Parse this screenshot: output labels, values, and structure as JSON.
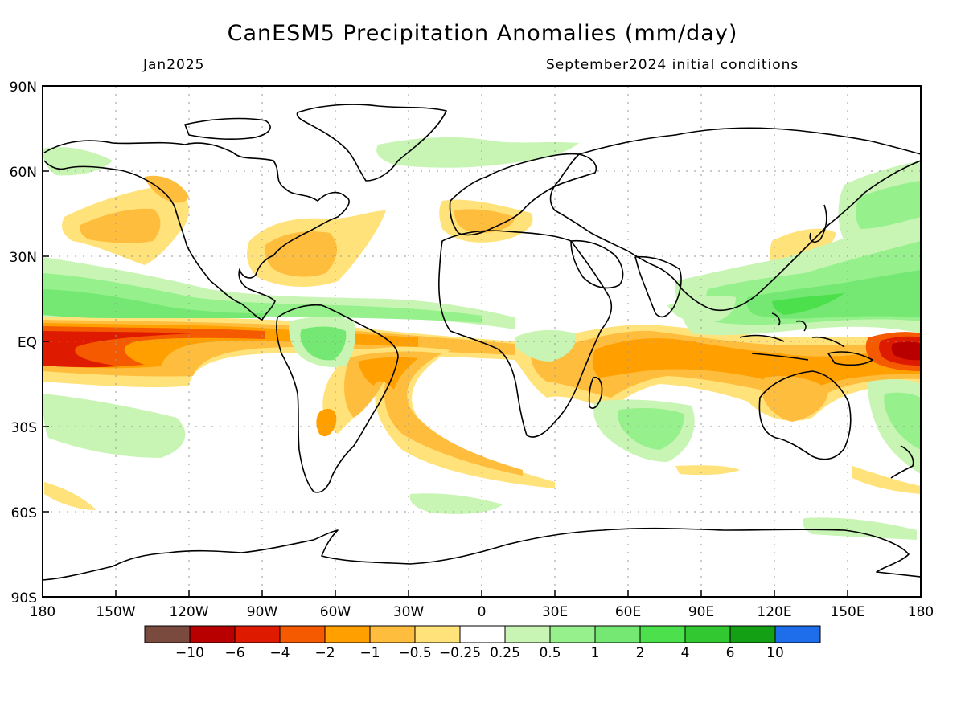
{
  "title": "CanESM5 Precipitation Anomalies (mm/day)",
  "valid_month": "Jan2025",
  "init_label": "September2024 initial conditions",
  "lat_labels": [
    "90N",
    "60N",
    "30N",
    "EQ",
    "30S",
    "60S",
    "90S"
  ],
  "lon_labels": [
    "180",
    "150W",
    "120W",
    "90W",
    "60W",
    "30W",
    "0",
    "30E",
    "60E",
    "90E",
    "120E",
    "150E",
    "180"
  ],
  "legend": {
    "colors": [
      "#7b4a3e",
      "#b80000",
      "#de1b00",
      "#f55a00",
      "#ffa000",
      "#ffbd3d",
      "#ffe27a",
      "#ffffff",
      "#c8f5b4",
      "#96f08c",
      "#75e874",
      "#4ce14c",
      "#32c832",
      "#14a014",
      "#1e6eeb"
    ],
    "labels": [
      "-10",
      "-6",
      "-4",
      "-2",
      "-1",
      "-0.5",
      "-0.25",
      "0.25",
      "0.5",
      "1",
      "2",
      "4",
      "6",
      "10"
    ]
  },
  "colors": {
    "dry_light": "#ffe27a",
    "dry_mid": "#ffbd3d",
    "dry_strong": "#ffa000",
    "dry_vstrong": "#f55a00",
    "dry_extreme": "#de1b00",
    "dry_max": "#b80000",
    "wet_light": "#c8f5b4",
    "wet_mid": "#96f08c",
    "wet_strong": "#75e874",
    "wet_vstrong": "#4ce14c"
  }
}
